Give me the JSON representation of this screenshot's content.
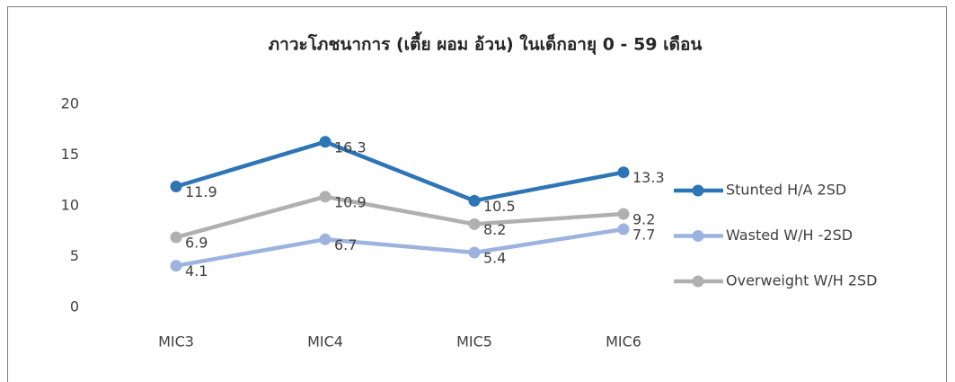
{
  "chart_data": {
    "type": "line",
    "title": "ภาวะโภชนาการ (เตี้ย ผอม อ้วน) ในเด็กอายุ 0 - 59 เดือน",
    "categories": [
      "MIC3",
      "MIC4",
      "MIC5",
      "MIC6"
    ],
    "series": [
      {
        "name": "Stunted H/A 2SD",
        "color": "#2e75b6",
        "values": [
          11.9,
          16.3,
          10.5,
          13.3
        ]
      },
      {
        "name": "Wasted W/H -2SD",
        "color": "#9cb3e0",
        "values": [
          4.1,
          6.7,
          5.4,
          7.7
        ]
      },
      {
        "name": "Overweight W/H 2SD",
        "color": "#b0b0b0",
        "values": [
          6.9,
          10.9,
          8.2,
          9.2
        ]
      }
    ],
    "ylim": [
      0,
      20
    ],
    "yticks": [
      0,
      5,
      10,
      15,
      20
    ],
    "grid": false,
    "legend": "right"
  }
}
